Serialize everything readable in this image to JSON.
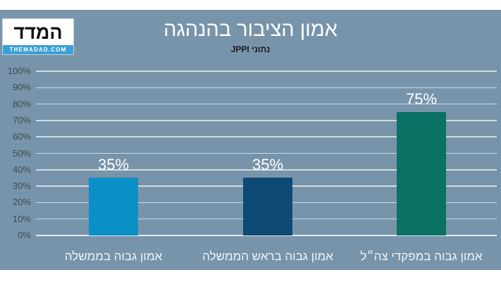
{
  "logo": {
    "name": "המדד",
    "site": "THEMADAD.COM",
    "strip_color": "#3aa0d5"
  },
  "header": {
    "title": "אמון הציבור בהנהגה",
    "subtitle": "נתוני JPPI"
  },
  "chart_data": {
    "type": "bar",
    "title": "אמון הציבור בהנהגה",
    "subtitle": "נתוני JPPI",
    "direction": "rtl",
    "categories": [
      "אמון גבוה בממשלה",
      "אמון גבוה בראש הממשלה",
      "אמון גבוה במפקדי צה״ל"
    ],
    "values": [
      35,
      35,
      75
    ],
    "value_labels": [
      "35%",
      "35%",
      "75%"
    ],
    "colors": [
      "#0b8fc7",
      "#0c4a73",
      "#0b7163"
    ],
    "ylim": [
      0,
      100
    ],
    "ytick_step": 10,
    "ytick_labels": [
      "0%",
      "10%",
      "20%",
      "30%",
      "40%",
      "50%",
      "60%",
      "70%",
      "80%",
      "90%",
      "100%"
    ],
    "grid": true,
    "legend": "none",
    "background": "#7794ab"
  }
}
